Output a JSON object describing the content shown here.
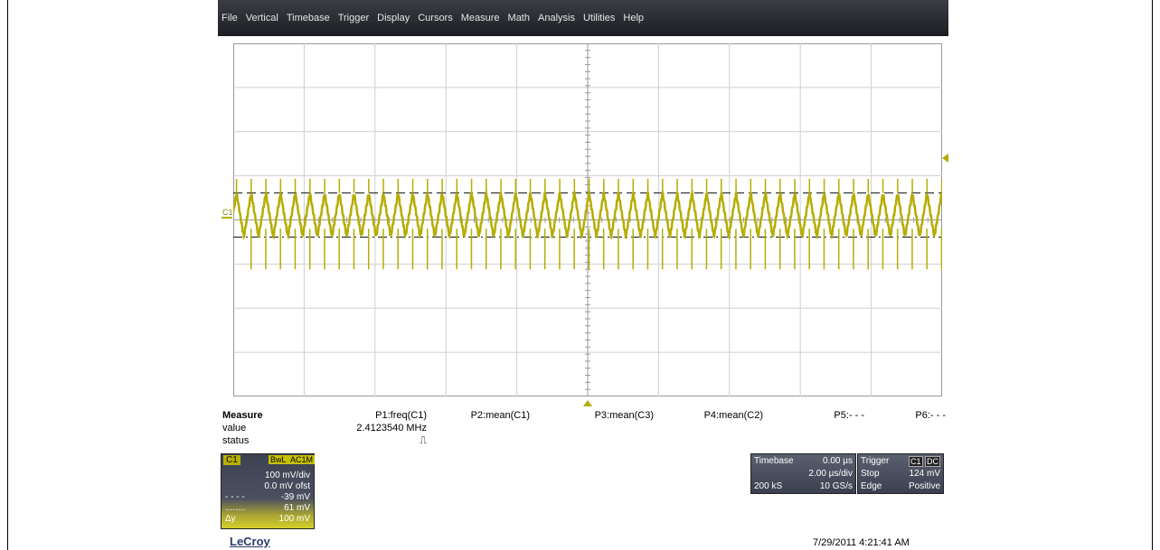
{
  "menu": [
    "File",
    "Vertical",
    "Timebase",
    "Trigger",
    "Display",
    "Cursors",
    "Measure",
    "Math",
    "Analysis",
    "Utilities",
    "Help"
  ],
  "channel_marker": "C1",
  "measure": {
    "title": "Measure",
    "row_labels": [
      "value",
      "status"
    ],
    "params": [
      {
        "name": "P1:freq(C1)",
        "value": "2.4123540 MHz",
        "status": "⎍"
      },
      {
        "name": "P2:mean(C1)",
        "value": "",
        "status": ""
      },
      {
        "name": "P3:mean(C3)",
        "value": "",
        "status": ""
      },
      {
        "name": "P4:mean(C2)",
        "value": "",
        "status": ""
      },
      {
        "name": "P5:- - -",
        "value": "",
        "status": ""
      },
      {
        "name": "P6:- - -",
        "value": "",
        "status": ""
      }
    ]
  },
  "channel": {
    "name": "C1",
    "bw_tag": "BwL",
    "coupling_tag": "AC1M",
    "scale": "100 mV/div",
    "offset": "0.0 mV ofst",
    "cursor1_label": "- - - -",
    "cursor1_value": "-39 mV",
    "cursor2_label": "........",
    "cursor2_value": "61 mV",
    "delta_label": "Δy",
    "delta_value": "100 mV"
  },
  "timebase": {
    "label": "Timebase",
    "delay": "0.00 µs",
    "per_div": "2.00 µs/div",
    "samples": "200 kS",
    "rate": "10 GS/s"
  },
  "trigger": {
    "label": "Trigger",
    "source": "C1",
    "coupling": "DC",
    "mode": "Stop",
    "level": "124 mV",
    "type": "Edge",
    "slope": "Positive"
  },
  "brand": "LeCroy",
  "timestamp": "7/29/2011 4:21:41 AM",
  "colors": {
    "trace": "#b5ad00",
    "grid": "#c8c8c8",
    "menubar": "#2a2c31"
  }
}
